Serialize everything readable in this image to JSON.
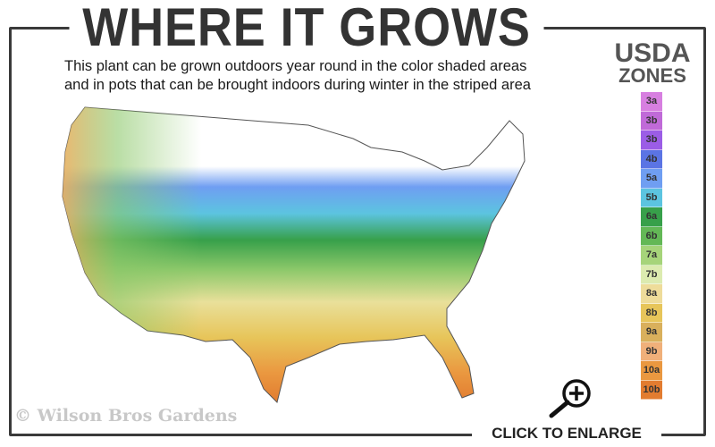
{
  "header": {
    "title": "WHERE IT GROWS",
    "subtitle_line1": "This plant can be grown outdoors year round in the color shaded areas",
    "subtitle_line2": "and in pots that can be brought indoors during winter in the striped area"
  },
  "legend": {
    "title_line1": "USDA",
    "title_line2": "ZONES",
    "zones": [
      {
        "label": "3a",
        "color": "#d77fe0"
      },
      {
        "label": "3b",
        "color": "#c06ad8"
      },
      {
        "label": "3b",
        "color": "#9b5de6"
      },
      {
        "label": "4b",
        "color": "#5b74e4"
      },
      {
        "label": "5a",
        "color": "#6f9ef2"
      },
      {
        "label": "5b",
        "color": "#5cc4e0"
      },
      {
        "label": "6a",
        "color": "#37a04a"
      },
      {
        "label": "6b",
        "color": "#63b856"
      },
      {
        "label": "7a",
        "color": "#a6d47a"
      },
      {
        "label": "7b",
        "color": "#dcebb0"
      },
      {
        "label": "8a",
        "color": "#eedc9a"
      },
      {
        "label": "8b",
        "color": "#e7c55a"
      },
      {
        "label": "9a",
        "color": "#d9b05c"
      },
      {
        "label": "9b",
        "color": "#f0b07a"
      },
      {
        "label": "10a",
        "color": "#ea9840"
      },
      {
        "label": "10b",
        "color": "#e27c30"
      }
    ]
  },
  "footer": {
    "copyright": "© Wilson Bros Gardens",
    "enlarge_label": "CLICK TO ENLARGE",
    "enlarge_icon": "magnifier-plus-icon"
  }
}
